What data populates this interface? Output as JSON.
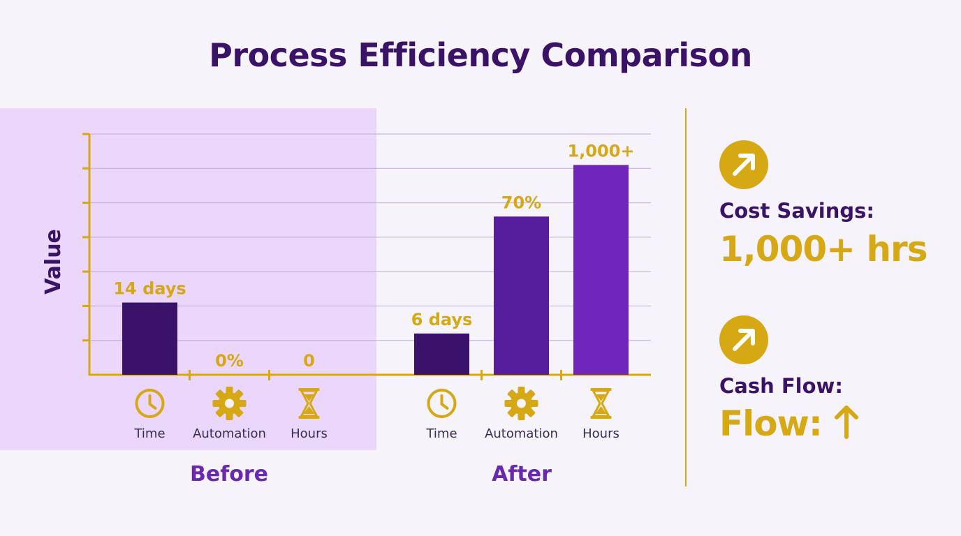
{
  "colors": {
    "background": "#f6f3fa",
    "before_panel": "#ead7fb",
    "title": "#3a1366",
    "axis": "#d6a813",
    "gold": "#d6a813",
    "grid": "#c3a9d8",
    "bar_time": "#3a1269",
    "bar_automation": "#561d9c",
    "bar_hours": "#7026ba",
    "group_label": "#6a27b0",
    "stat_label": "#3a1366",
    "category_text": "#3b2a55"
  },
  "chart_data": {
    "type": "bar",
    "title": "Process Efficiency Comparison",
    "ylabel": "Value",
    "xlabel": "",
    "ylim": [
      0,
      7
    ],
    "y_tick_count": 7,
    "y_tick_labels_shown": false,
    "grid": true,
    "groups": [
      {
        "name": "Before",
        "bars": [
          {
            "category": "Time",
            "icon": "clock-icon",
            "value": 2.1,
            "label": "14 days"
          },
          {
            "category": "Automation",
            "icon": "gear-icon",
            "value": 0,
            "label": "0%"
          },
          {
            "category": "Hours",
            "icon": "hourglass-icon",
            "value": 0,
            "label": "0"
          }
        ]
      },
      {
        "name": "After",
        "bars": [
          {
            "category": "Time",
            "icon": "clock-icon",
            "value": 1.2,
            "label": "6 days"
          },
          {
            "category": "Automation",
            "icon": "gear-icon",
            "value": 4.6,
            "label": "70%"
          },
          {
            "category": "Hours",
            "icon": "hourglass-icon",
            "value": 6.1,
            "label": "1,000+"
          }
        ]
      }
    ]
  },
  "stats": [
    {
      "icon": "arrow-up-right-icon",
      "label": "Cost Savings:",
      "value": "1,000+ hrs"
    },
    {
      "icon": "arrow-up-right-icon",
      "label": "Cash Flow:",
      "value": "Flow:",
      "value_icon": "arrow-up-icon"
    }
  ]
}
